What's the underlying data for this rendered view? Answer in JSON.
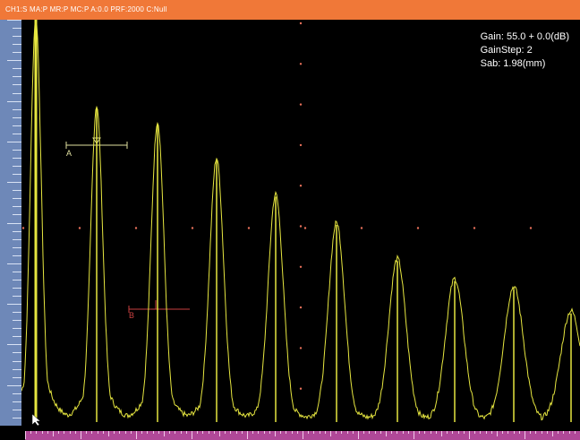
{
  "status_bar": {
    "text": "CH1:S  MA:P  MR:P  MC:P  A:0.0  PRF:2000  C:Null"
  },
  "readout": {
    "gain": "Gain: 55.0 + 0.0(dB)",
    "gain_step": "GainStep: 2",
    "sab": "Sab: 1.98(mm)"
  },
  "gates": {
    "a_label": "A",
    "b_label": "B"
  },
  "colors": {
    "trace": "#e6e640",
    "gate_a": "#e0e0a0",
    "gate_b": "#c84040",
    "grid": "#e8705a",
    "status_bar_bg": "#f07838"
  },
  "echo_peaks": [
    {
      "label": "E1",
      "amplitude_pct": 100
    },
    {
      "label": "E2",
      "amplitude_pct": 78
    },
    {
      "label": "E3",
      "amplitude_pct": 74
    },
    {
      "label": "E4",
      "amplitude_pct": 65
    },
    {
      "label": "E5",
      "amplitude_pct": 56
    },
    {
      "label": "E6",
      "amplitude_pct": 49
    },
    {
      "label": "E7",
      "amplitude_pct": 40
    },
    {
      "label": "E8",
      "amplitude_pct": 35
    },
    {
      "label": "E9",
      "amplitude_pct": 33
    },
    {
      "label": "E10",
      "amplitude_pct": 27
    },
    {
      "label": "E11",
      "amplitude_pct": 24
    }
  ],
  "cursor_icon": "arrow-pointer-icon"
}
